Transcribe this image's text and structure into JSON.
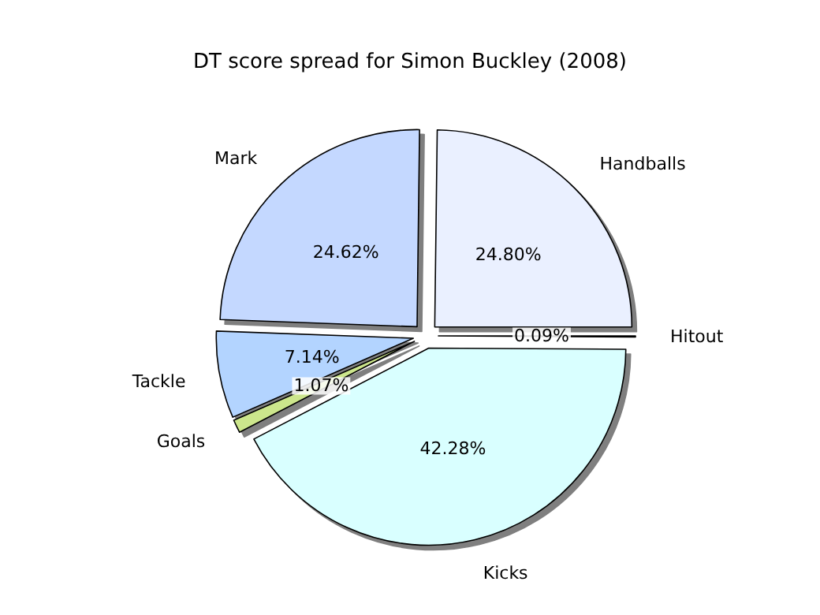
{
  "chart_data": {
    "type": "pie",
    "title": "DT score spread for Simon Buckley (2008)",
    "categories": [
      "Handballs",
      "Mark",
      "Tackle",
      "Goals",
      "Kicks",
      "Hitout"
    ],
    "values": [
      24.8,
      24.62,
      7.14,
      1.07,
      42.28,
      0.09
    ],
    "value_labels": [
      "24.80%",
      "24.62%",
      "7.14%",
      "1.07%",
      "42.28%",
      "0.09%"
    ],
    "colors": [
      "#eaf0ff",
      "#c4d8ff",
      "#b3d4ff",
      "#cce68c",
      "#d9ffff",
      "#ffffff"
    ],
    "legend": false
  }
}
